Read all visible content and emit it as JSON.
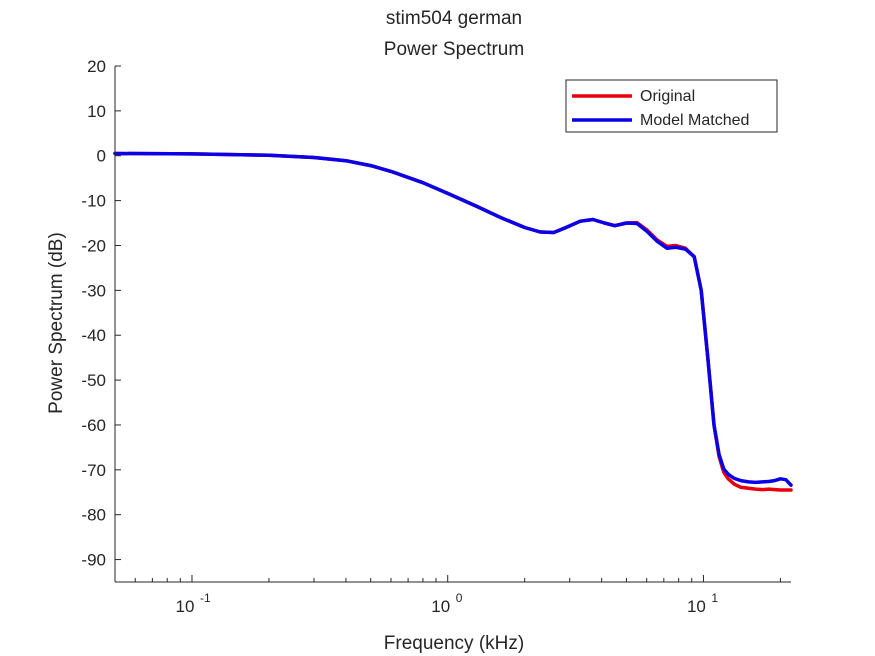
{
  "chart_data": {
    "type": "line",
    "title": "stim504 german",
    "subtitle": "Power Spectrum",
    "xlabel": "Frequency (kHz)",
    "ylabel": "Power Spectrum (dB)",
    "xscale": "log",
    "xlim": [
      0.05,
      22
    ],
    "ylim": [
      -95,
      20
    ],
    "xticks": [
      {
        "value": 0.1,
        "base": "10",
        "exp": "-1"
      },
      {
        "value": 1,
        "base": "10",
        "exp": "0"
      },
      {
        "value": 10,
        "base": "10",
        "exp": "1"
      }
    ],
    "yticks": [
      20,
      10,
      0,
      -10,
      -20,
      -30,
      -40,
      -50,
      -60,
      -70,
      -80,
      -90
    ],
    "grid": false,
    "legend_position": "top-right",
    "series": [
      {
        "name": "Original",
        "color": "#e8000b",
        "x": [
          0.05,
          0.1,
          0.2,
          0.3,
          0.4,
          0.5,
          0.6,
          0.8,
          1.0,
          1.3,
          1.6,
          2.0,
          2.3,
          2.6,
          2.9,
          3.3,
          3.7,
          4.1,
          4.5,
          5.0,
          5.5,
          6.0,
          6.6,
          7.2,
          7.8,
          8.5,
          9.2,
          9.8,
          10.4,
          11.0,
          11.5,
          12.0,
          12.5,
          13.2,
          14.0,
          15.0,
          16.0,
          17.0,
          18.0,
          19.0,
          20.0,
          21.0,
          22.0
        ],
        "y": [
          0.5,
          0.4,
          0.1,
          -0.4,
          -1.1,
          -2.2,
          -3.5,
          -6.0,
          -8.4,
          -11.3,
          -13.7,
          -16.0,
          -17.0,
          -17.1,
          -16.0,
          -14.6,
          -14.2,
          -15.0,
          -15.6,
          -15.0,
          -14.9,
          -16.5,
          -18.8,
          -20.2,
          -20.0,
          -20.6,
          -22.5,
          -30.0,
          -45.0,
          -60.0,
          -67.0,
          -70.5,
          -72.0,
          -73.2,
          -73.9,
          -74.1,
          -74.3,
          -74.4,
          -74.3,
          -74.4,
          -74.5,
          -74.5,
          -74.5
        ]
      },
      {
        "name": "Model Matched",
        "color": "#0a00e8",
        "x": [
          0.05,
          0.1,
          0.2,
          0.3,
          0.4,
          0.5,
          0.6,
          0.8,
          1.0,
          1.3,
          1.6,
          2.0,
          2.3,
          2.6,
          2.9,
          3.3,
          3.7,
          4.1,
          4.5,
          5.0,
          5.5,
          6.0,
          6.6,
          7.2,
          7.8,
          8.5,
          9.2,
          9.8,
          10.4,
          11.0,
          11.5,
          12.0,
          12.5,
          13.2,
          14.0,
          15.0,
          16.0,
          17.0,
          18.0,
          19.0,
          20.0,
          21.0,
          22.0
        ],
        "y": [
          0.5,
          0.4,
          0.1,
          -0.4,
          -1.1,
          -2.2,
          -3.5,
          -6.0,
          -8.4,
          -11.3,
          -13.7,
          -16.0,
          -17.0,
          -17.1,
          -16.0,
          -14.6,
          -14.2,
          -15.0,
          -15.6,
          -15.0,
          -15.1,
          -16.8,
          -19.1,
          -20.6,
          -20.4,
          -20.8,
          -22.5,
          -30.0,
          -45.0,
          -60.0,
          -66.5,
          -69.8,
          -71.0,
          -71.9,
          -72.4,
          -72.7,
          -72.8,
          -72.7,
          -72.6,
          -72.4,
          -72.0,
          -72.2,
          -73.4
        ]
      }
    ]
  }
}
